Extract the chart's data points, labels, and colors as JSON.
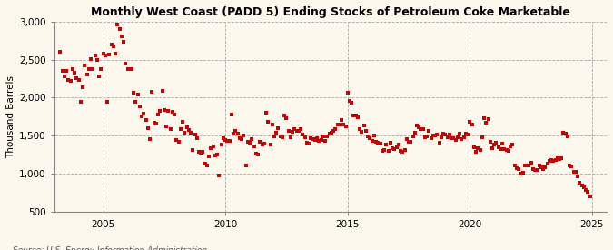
{
  "title": "Monthly West Coast (PADD 5) Ending Stocks of Petroleum Coke Marketable",
  "ylabel": "Thousand Barrels",
  "marker_color": "#cc0000",
  "background_color": "#fdf8ee",
  "plot_bg_color": "#fdf8ee",
  "ylim": [
    500,
    3000
  ],
  "yticks": [
    500,
    1000,
    1500,
    2000,
    2500,
    3000
  ],
  "xlim": [
    2003.0,
    2025.6
  ],
  "xticks": [
    2005,
    2010,
    2015,
    2020,
    2025
  ],
  "data": {
    "dates": [
      2003.25,
      2003.333,
      2003.417,
      2003.5,
      2003.583,
      2003.667,
      2003.75,
      2003.833,
      2003.917,
      2004.0,
      2004.083,
      2004.167,
      2004.25,
      2004.333,
      2004.417,
      2004.5,
      2004.583,
      2004.667,
      2004.75,
      2004.833,
      2004.917,
      2005.0,
      2005.083,
      2005.167,
      2005.25,
      2005.333,
      2005.417,
      2005.5,
      2005.583,
      2005.667,
      2005.75,
      2005.833,
      2005.917,
      2006.0,
      2006.083,
      2006.167,
      2006.25,
      2006.333,
      2006.417,
      2006.5,
      2006.583,
      2006.667,
      2006.75,
      2006.833,
      2006.917,
      2007.0,
      2007.083,
      2007.167,
      2007.25,
      2007.333,
      2007.417,
      2007.5,
      2007.583,
      2007.667,
      2007.75,
      2007.833,
      2007.917,
      2008.0,
      2008.083,
      2008.167,
      2008.25,
      2008.333,
      2008.417,
      2008.5,
      2008.583,
      2008.667,
      2008.75,
      2008.833,
      2008.917,
      2009.0,
      2009.083,
      2009.167,
      2009.25,
      2009.333,
      2009.417,
      2009.5,
      2009.583,
      2009.667,
      2009.75,
      2009.833,
      2009.917,
      2010.0,
      2010.083,
      2010.167,
      2010.25,
      2010.333,
      2010.417,
      2010.5,
      2010.583,
      2010.667,
      2010.75,
      2010.833,
      2010.917,
      2011.0,
      2011.083,
      2011.167,
      2011.25,
      2011.333,
      2011.417,
      2011.5,
      2011.583,
      2011.667,
      2011.75,
      2011.833,
      2011.917,
      2012.0,
      2012.083,
      2012.167,
      2012.25,
      2012.333,
      2012.417,
      2012.5,
      2012.583,
      2012.667,
      2012.75,
      2012.833,
      2012.917,
      2013.0,
      2013.083,
      2013.167,
      2013.25,
      2013.333,
      2013.417,
      2013.5,
      2013.583,
      2013.667,
      2013.75,
      2013.833,
      2013.917,
      2014.0,
      2014.083,
      2014.167,
      2014.25,
      2014.333,
      2014.417,
      2014.5,
      2014.583,
      2014.667,
      2014.75,
      2014.833,
      2014.917,
      2015.0,
      2015.083,
      2015.167,
      2015.25,
      2015.333,
      2015.417,
      2015.5,
      2015.583,
      2015.667,
      2015.75,
      2015.833,
      2015.917,
      2016.0,
      2016.083,
      2016.167,
      2016.25,
      2016.333,
      2016.417,
      2016.5,
      2016.583,
      2016.667,
      2016.75,
      2016.833,
      2016.917,
      2017.0,
      2017.083,
      2017.167,
      2017.25,
      2017.333,
      2017.417,
      2017.5,
      2017.583,
      2017.667,
      2017.75,
      2017.833,
      2017.917,
      2018.0,
      2018.083,
      2018.167,
      2018.25,
      2018.333,
      2018.417,
      2018.5,
      2018.583,
      2018.667,
      2018.75,
      2018.833,
      2018.917,
      2019.0,
      2019.083,
      2019.167,
      2019.25,
      2019.333,
      2019.417,
      2019.5,
      2019.583,
      2019.667,
      2019.75,
      2019.833,
      2019.917,
      2020.0,
      2020.083,
      2020.167,
      2020.25,
      2020.333,
      2020.417,
      2020.5,
      2020.583,
      2020.667,
      2020.75,
      2020.833,
      2020.917,
      2021.0,
      2021.083,
      2021.167,
      2021.25,
      2021.333,
      2021.417,
      2021.5,
      2021.583,
      2021.667,
      2021.75,
      2021.833,
      2021.917,
      2022.0,
      2022.083,
      2022.167,
      2022.25,
      2022.333,
      2022.417,
      2022.5,
      2022.583,
      2022.667,
      2022.75,
      2022.833,
      2022.917,
      2023.0,
      2023.083,
      2023.167,
      2023.25,
      2023.333,
      2023.417,
      2023.5,
      2023.583,
      2023.667,
      2023.75,
      2023.833,
      2023.917,
      2024.0,
      2024.083,
      2024.167,
      2024.25,
      2024.333,
      2024.417,
      2024.5,
      2024.583,
      2024.667,
      2024.75,
      2024.833,
      2024.917
    ],
    "values": [
      2600,
      2350,
      2280,
      2350,
      2230,
      2220,
      2380,
      2330,
      2260,
      2230,
      1950,
      2130,
      2420,
      2300,
      2370,
      2510,
      2370,
      2560,
      2500,
      2280,
      2380,
      2580,
      2560,
      1940,
      2570,
      2700,
      2680,
      2580,
      2960,
      2900,
      2810,
      2730,
      2450,
      2380,
      2380,
      2380,
      2070,
      1950,
      2040,
      1890,
      1750,
      1790,
      1700,
      1600,
      1450,
      2080,
      1670,
      1660,
      1780,
      1820,
      2090,
      1840,
      1620,
      1820,
      1590,
      1810,
      1780,
      1440,
      1420,
      1580,
      1680,
      1540,
      1610,
      1570,
      1540,
      1310,
      1510,
      1460,
      1280,
      1270,
      1280,
      1130,
      1110,
      1220,
      1330,
      1360,
      1240,
      1250,
      970,
      1380,
      1470,
      1440,
      1430,
      1430,
      1780,
      1520,
      1560,
      1520,
      1460,
      1450,
      1500,
      1100,
      1420,
      1400,
      1450,
      1360,
      1260,
      1250,
      1420,
      1380,
      1390,
      1800,
      1680,
      1380,
      1640,
      1490,
      1540,
      1600,
      1490,
      1480,
      1760,
      1730,
      1560,
      1480,
      1550,
      1590,
      1560,
      1560,
      1590,
      1510,
      1480,
      1400,
      1390,
      1460,
      1450,
      1440,
      1460,
      1430,
      1440,
      1490,
      1430,
      1490,
      1520,
      1540,
      1560,
      1590,
      1640,
      1640,
      1710,
      1640,
      1620,
      2060,
      1960,
      1930,
      1760,
      1760,
      1740,
      1580,
      1550,
      1630,
      1560,
      1490,
      1460,
      1430,
      1500,
      1420,
      1400,
      1390,
      1300,
      1310,
      1380,
      1300,
      1410,
      1330,
      1320,
      1340,
      1380,
      1300,
      1290,
      1310,
      1450,
      1420,
      1420,
      1490,
      1540,
      1630,
      1610,
      1580,
      1580,
      1480,
      1490,
      1560,
      1460,
      1500,
      1500,
      1510,
      1410,
      1480,
      1530,
      1510,
      1480,
      1510,
      1460,
      1470,
      1440,
      1480,
      1520,
      1450,
      1480,
      1530,
      1510,
      1680,
      1650,
      1340,
      1290,
      1330,
      1310,
      1480,
      1730,
      1670,
      1720,
      1420,
      1330,
      1380,
      1400,
      1350,
      1320,
      1390,
      1320,
      1310,
      1300,
      1360,
      1380,
      1100,
      1070,
      1060,
      1000,
      1010,
      1100,
      1110,
      1100,
      1140,
      1060,
      1050,
      1050,
      1100,
      1080,
      1060,
      1080,
      1130,
      1170,
      1180,
      1160,
      1180,
      1200,
      1190,
      1200,
      1540,
      1520,
      1490,
      1100,
      1090,
      1020,
      1020,
      960,
      880,
      840,
      820,
      780,
      760,
      700
    ]
  }
}
